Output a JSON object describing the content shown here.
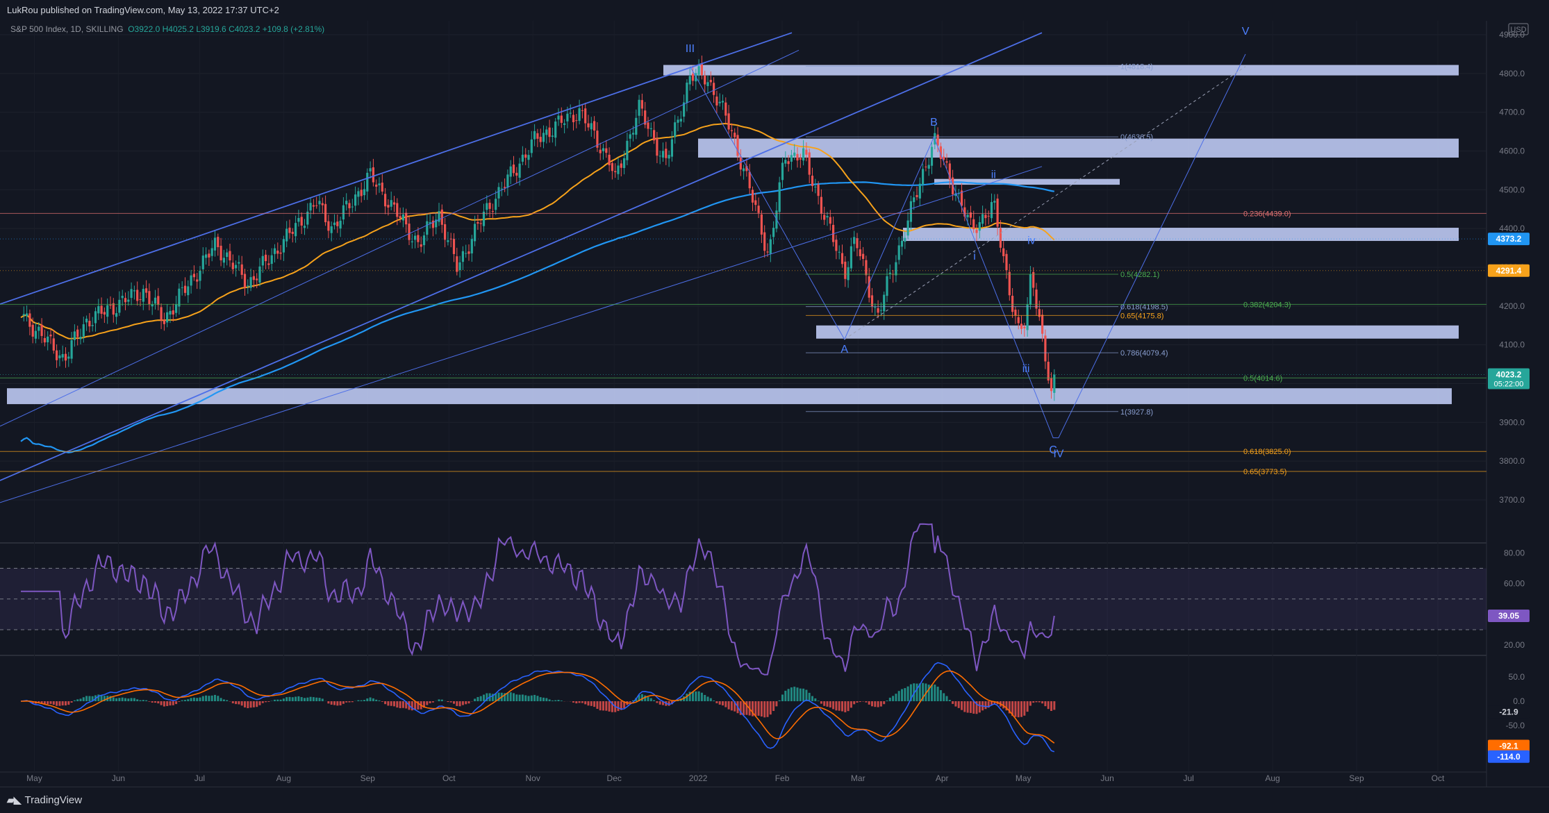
{
  "header": {
    "published_line": "LukRou published on TradingView.com, May 13, 2022 17:37 UTC+2",
    "symbol": "S&P 500 Index, 1D, SKILLING",
    "ohlc": {
      "o": "O3922.0",
      "h": "H4025.2",
      "l": "L3919.6",
      "c": "C4023.2",
      "chg": "+109.8 (+2.81%)"
    }
  },
  "currency": "USD",
  "footer": {
    "brand": "TradingView"
  },
  "colors": {
    "bg": "#131722",
    "up": "#26a69a",
    "down": "#ef5350",
    "ma50": "#f7a21b",
    "ma200": "#2196f3",
    "channel": "#4d6fe8",
    "zone": "#c8d3ff",
    "rsi": "#7e57c2",
    "macd": "#2962ff",
    "signal": "#ff6d00"
  },
  "chart_data": [
    {
      "type": "candlestick",
      "title": "S&P 500 Index, 1D, SKILLING",
      "y_range": [
        3680,
        4930
      ],
      "y_ticks": [
        "4900.0",
        "4800.0",
        "4700.0",
        "4600.0",
        "4500.0",
        "4400.0",
        "4300.0",
        "4200.0",
        "4100.0",
        "4000.0",
        "3900.0",
        "3800.0",
        "3700.0"
      ],
      "x_ticks": [
        "May",
        "Jun",
        "Jul",
        "Aug",
        "Sep",
        "Oct",
        "Nov",
        "Dec",
        "2022",
        "Feb",
        "Mar",
        "Apr",
        "May",
        "Jun",
        "Jul",
        "Aug",
        "Sep",
        "Oct"
      ],
      "price_anchors": [
        [
          "2021-04-26",
          4180
        ],
        [
          "2021-05-12",
          4063
        ],
        [
          "2021-05-20",
          4160
        ],
        [
          "2021-06-10",
          4240
        ],
        [
          "2021-06-18",
          4166
        ],
        [
          "2021-07-07",
          4360
        ],
        [
          "2021-07-19",
          4258
        ],
        [
          "2021-08-13",
          4468
        ],
        [
          "2021-08-19",
          4400
        ],
        [
          "2021-09-02",
          4536
        ],
        [
          "2021-09-20",
          4357
        ],
        [
          "2021-09-27",
          4443
        ],
        [
          "2021-10-04",
          4300
        ],
        [
          "2021-10-14",
          4438
        ],
        [
          "2021-11-02",
          4630
        ],
        [
          "2021-11-18",
          4704
        ],
        [
          "2021-11-30",
          4567
        ],
        [
          "2021-12-01",
          4513
        ],
        [
          "2021-12-10",
          4712
        ],
        [
          "2021-12-20",
          4568
        ],
        [
          "2021-12-29",
          4793
        ],
        [
          "2022-01-04",
          4793
        ],
        [
          "2022-01-13",
          4659
        ],
        [
          "2022-01-24",
          4410
        ],
        [
          "2022-01-27",
          4326
        ],
        [
          "2022-02-02",
          4589
        ],
        [
          "2022-02-09",
          4587
        ],
        [
          "2022-02-24",
          4288
        ],
        [
          "2022-02-28",
          4374
        ],
        [
          "2022-03-08",
          4170
        ],
        [
          "2022-03-29",
          4631
        ],
        [
          "2022-04-12",
          4397
        ],
        [
          "2022-04-20",
          4460
        ],
        [
          "2022-04-29",
          4132
        ],
        [
          "2022-05-02",
          4155
        ],
        [
          "2022-05-04",
          4300
        ],
        [
          "2022-05-12",
          3930
        ],
        [
          "2022-05-13",
          4023.2
        ]
      ],
      "moving_averages": [
        {
          "name": "MA50",
          "last": "4291.4"
        },
        {
          "name": "MA200",
          "last": "4373.2"
        }
      ],
      "price_labels": [
        {
          "value": "4373.2",
          "color": "#2196f3"
        },
        {
          "value": "4291.4",
          "color": "#f7a21b"
        },
        {
          "value": "4023.2",
          "time": "05:22:00",
          "color": "#26a69a"
        }
      ],
      "fib_levels": [
        {
          "label": "0(4636.5)",
          "price": 4636.5
        },
        {
          "label": "1(4818.4)",
          "price": 4818.4
        },
        {
          "label": "0.236(4439.0)",
          "price": 4439.0
        },
        {
          "label": "0.5(4282.1)",
          "price": 4282.1
        },
        {
          "label": "0.618(4198.5)",
          "price": 4198.5
        },
        {
          "label": "0.382(4204.3)",
          "price": 4204.3
        },
        {
          "label": "0.65(4175.8)",
          "price": 4175.8
        },
        {
          "label": "0.786(4079.4)",
          "price": 4079.4
        },
        {
          "label": "0.5(4014.6)",
          "price": 4014.6
        },
        {
          "label": "1(3927.8)",
          "price": 3927.8
        },
        {
          "label": "0.618(3825.0)",
          "price": 3825.0
        },
        {
          "label": "0.65(3773.5)",
          "price": 3773.5
        }
      ],
      "wave_labels": [
        "III",
        "B",
        "ii",
        "i",
        "iv",
        "iii",
        "A",
        "C",
        "IV",
        "V"
      ]
    },
    {
      "type": "line",
      "name": "RSI",
      "y_ticks": [
        "80.00",
        "60.00",
        "40.00",
        "20.00"
      ],
      "bands": [
        70,
        50,
        30
      ],
      "last": "39.05"
    },
    {
      "type": "histogram",
      "name": "MACD",
      "y_ticks": [
        "50.0",
        "0.0",
        "-50.0"
      ],
      "last_values": [
        "-21.9",
        "-92.1",
        "-114.0"
      ]
    }
  ]
}
